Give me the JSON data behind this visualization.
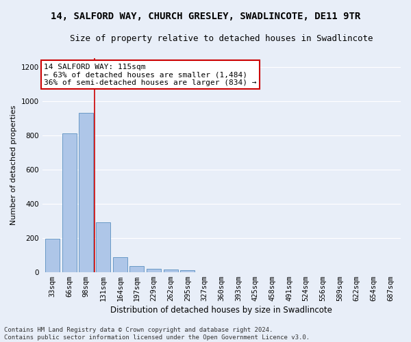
{
  "title": "14, SALFORD WAY, CHURCH GRESLEY, SWADLINCOTE, DE11 9TR",
  "subtitle": "Size of property relative to detached houses in Swadlincote",
  "xlabel": "Distribution of detached houses by size in Swadlincote",
  "ylabel": "Number of detached properties",
  "bin_labels": [
    "33sqm",
    "66sqm",
    "98sqm",
    "131sqm",
    "164sqm",
    "197sqm",
    "229sqm",
    "262sqm",
    "295sqm",
    "327sqm",
    "360sqm",
    "393sqm",
    "425sqm",
    "458sqm",
    "491sqm",
    "524sqm",
    "556sqm",
    "589sqm",
    "622sqm",
    "654sqm",
    "687sqm"
  ],
  "bar_values": [
    195,
    810,
    930,
    290,
    85,
    35,
    20,
    15,
    12,
    0,
    0,
    0,
    0,
    0,
    0,
    0,
    0,
    0,
    0,
    0,
    0
  ],
  "bar_color": "#aec6e8",
  "bar_edge_color": "#5a8fc0",
  "vline_x": 2.5,
  "annotation_line1": "14 SALFORD WAY: 115sqm",
  "annotation_line2": "← 63% of detached houses are smaller (1,484)",
  "annotation_line3": "36% of semi-detached houses are larger (834) →",
  "annotation_box_color": "#ffffff",
  "annotation_box_edge": "#cc0000",
  "vline_color": "#cc0000",
  "ylim": [
    0,
    1250
  ],
  "yticks": [
    0,
    200,
    400,
    600,
    800,
    1000,
    1200
  ],
  "background_color": "#e8eef8",
  "footer_text": "Contains HM Land Registry data © Crown copyright and database right 2024.\nContains public sector information licensed under the Open Government Licence v3.0.",
  "title_fontsize": 10,
  "subtitle_fontsize": 9,
  "xlabel_fontsize": 8.5,
  "ylabel_fontsize": 8,
  "tick_fontsize": 7.5,
  "annotation_fontsize": 8,
  "footer_fontsize": 6.5
}
